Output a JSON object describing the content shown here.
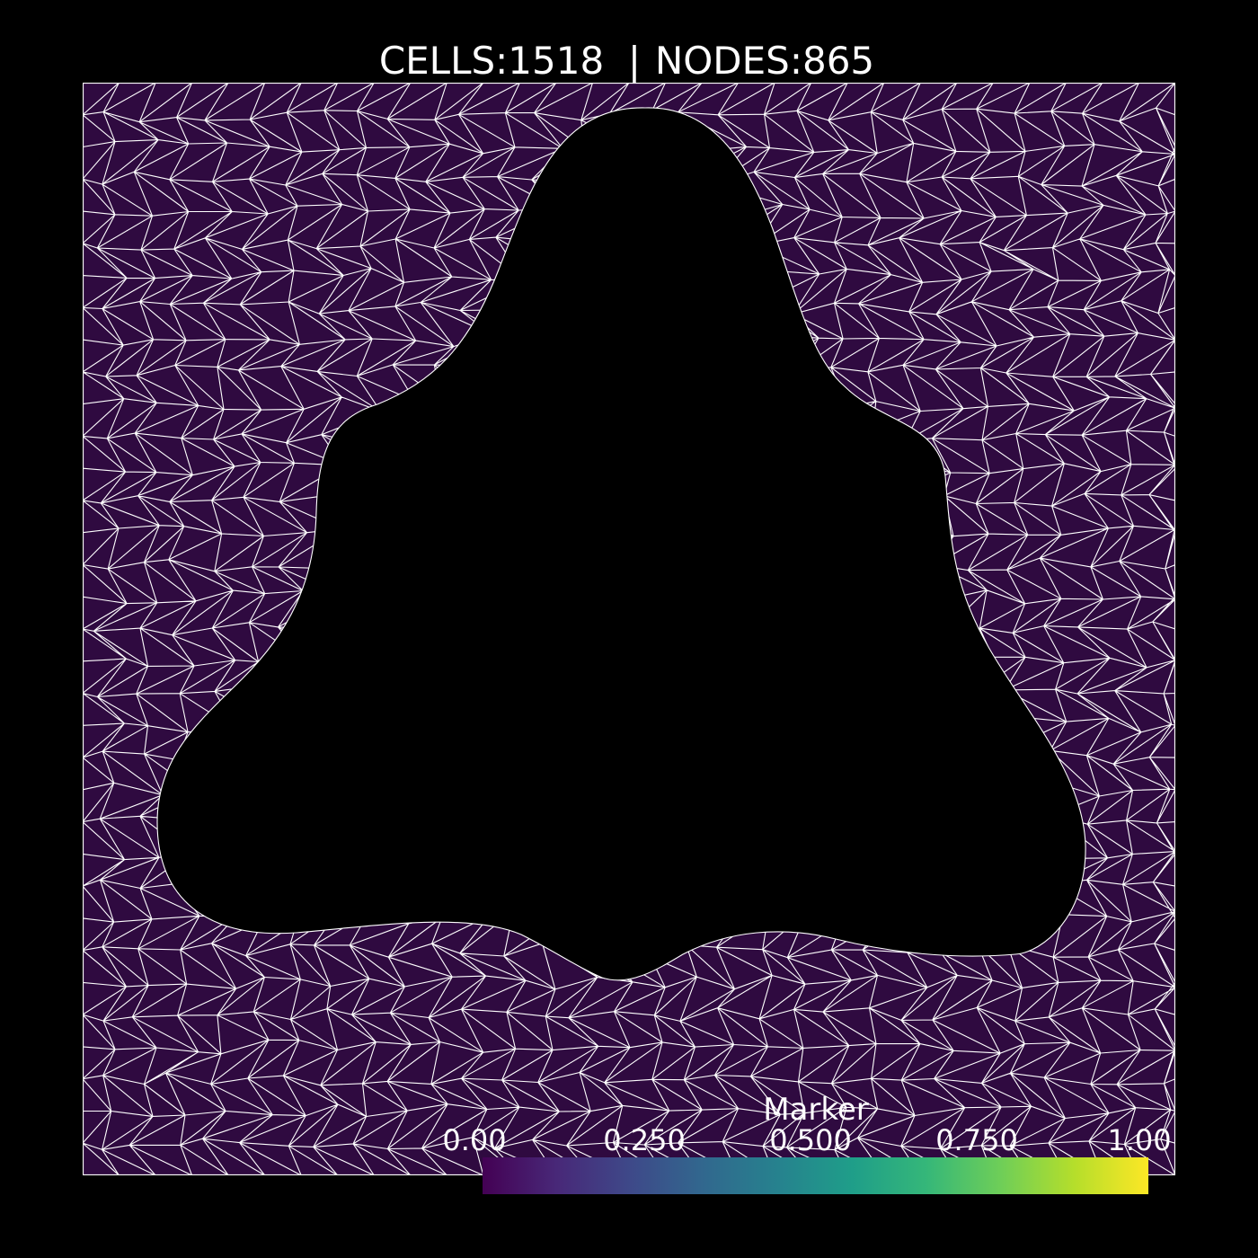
{
  "header": {
    "cells_label": "CELLS:1518",
    "separator": "|",
    "nodes_label": "NODES:865"
  },
  "mesh": {
    "cells": 1518,
    "nodes": 865,
    "fill_color": "#2f0a40",
    "edge_color": "#ffffff",
    "hole_color": "#000000"
  },
  "colorbar": {
    "title": "Marker",
    "ticks": [
      "0.00",
      "0.250",
      "0.500",
      "0.750",
      "1.00"
    ],
    "range": [
      0,
      1
    ],
    "colormap": "viridis",
    "stops": [
      "#440154",
      "#482878",
      "#3e4989",
      "#31688e",
      "#26828e",
      "#1f9e89",
      "#35b779",
      "#6ece58",
      "#b5de2b",
      "#fde725"
    ]
  }
}
